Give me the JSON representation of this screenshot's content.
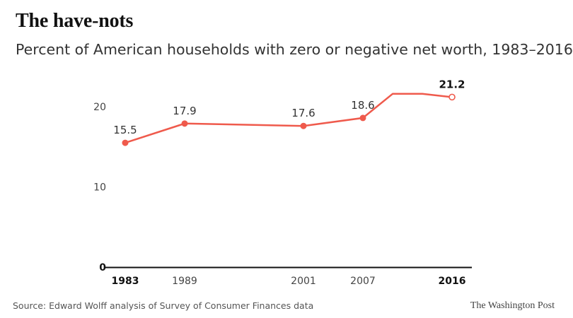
{
  "header": {
    "title": "The have-nots",
    "subtitle": "Percent of American households with zero or negative net worth, 1983–2016"
  },
  "footer": {
    "source": "Source: Edward Wolff analysis of Survey of Consumer Finances data",
    "brand": "The Washington Post"
  },
  "colors": {
    "line": "#ef5a4c",
    "text": "#222222",
    "axis": "#111111"
  },
  "chart_data": {
    "type": "line",
    "title": "The have-nots",
    "subtitle": "Percent of American households with zero or negative net worth, 1983–2016",
    "xlabel": "",
    "ylabel": "",
    "xlim": [
      1983,
      2016
    ],
    "ylim": [
      0,
      20
    ],
    "y_ticks": [
      0,
      10,
      20
    ],
    "x_ticks": [
      {
        "value": 1983,
        "label": "1983",
        "bold": true
      },
      {
        "value": 1989,
        "label": "1989",
        "bold": false
      },
      {
        "value": 2001,
        "label": "2001",
        "bold": false
      },
      {
        "value": 2007,
        "label": "2007",
        "bold": false
      },
      {
        "value": 2016,
        "label": "2016",
        "bold": true
      }
    ],
    "grid": false,
    "series": [
      {
        "x": [
          1983,
          1989,
          2001,
          2007,
          2010,
          2013,
          2016
        ],
        "y": [
          15.5,
          17.9,
          17.6,
          18.6,
          21.6,
          21.6,
          21.2
        ]
      }
    ],
    "markers": [
      {
        "x": 1983,
        "y": 15.5,
        "label": "15.5",
        "hollow": false,
        "bold": false
      },
      {
        "x": 1989,
        "y": 17.9,
        "label": "17.9",
        "hollow": false,
        "bold": false
      },
      {
        "x": 2001,
        "y": 17.6,
        "label": "17.6",
        "hollow": false,
        "bold": false
      },
      {
        "x": 2007,
        "y": 18.6,
        "label": "18.6",
        "hollow": false,
        "bold": false
      },
      {
        "x": 2016,
        "y": 21.2,
        "label": "21.2",
        "hollow": true,
        "bold": true
      }
    ]
  }
}
